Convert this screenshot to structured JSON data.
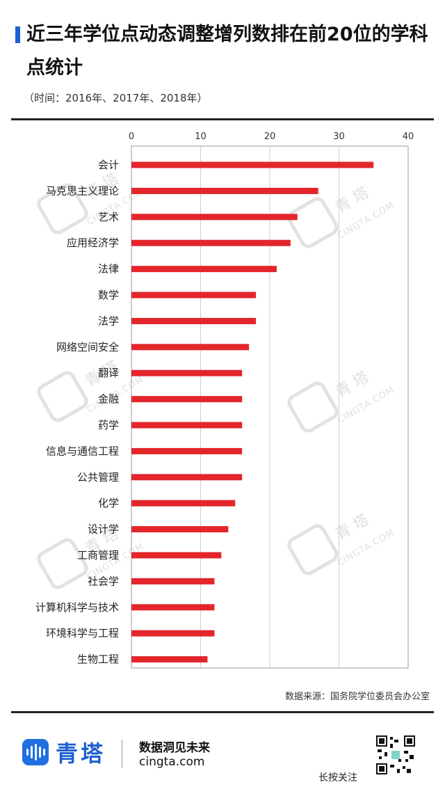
{
  "header": {
    "title": "近三年学位点动态调整增列数排在前20位的学科点统计",
    "subtitle": "（时间：2016年、2017年、2018年）"
  },
  "chart_data": {
    "type": "bar",
    "orientation": "horizontal",
    "categories": [
      "会计",
      "马克思主义理论",
      "艺术",
      "应用经济学",
      "法律",
      "数学",
      "法学",
      "网络空间安全",
      "翻译",
      "金融",
      "药学",
      "信息与通信工程",
      "公共管理",
      "化学",
      "设计学",
      "工商管理",
      "社会学",
      "计算机科学与技术",
      "环境科学与工程",
      "生物工程"
    ],
    "values": [
      35,
      27,
      24,
      23,
      21,
      18,
      18,
      17,
      16,
      16,
      16,
      16,
      16,
      15,
      14,
      13,
      12,
      12,
      12,
      11
    ],
    "xlim": [
      0,
      40
    ],
    "xticks": [
      "0",
      "10",
      "20",
      "30",
      "40"
    ],
    "grid": true,
    "legend": "none",
    "bar_color": "#e3262b"
  },
  "source": "数据来源：国务院学位委员会办公室",
  "footer": {
    "brand": "青塔",
    "slogan": "数据洞见未来",
    "site": "cingta.com",
    "follow": "长按关注"
  },
  "watermark": {
    "text": "青 塔",
    "url": "CINGTA.COM"
  }
}
